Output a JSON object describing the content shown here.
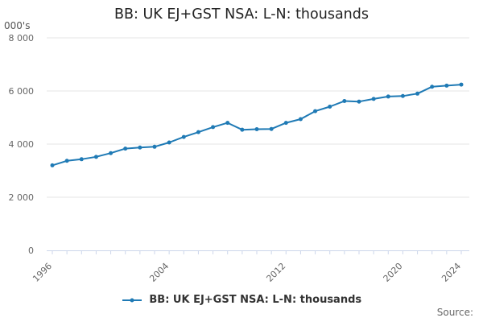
{
  "chart_data": {
    "type": "line",
    "title": "BB: UK EJ+GST NSA: L-N: thousands",
    "y_unit_label": "000's",
    "source_label": "Source:",
    "ylim": [
      0,
      8000
    ],
    "yticks": [
      0,
      2000,
      4000,
      6000,
      8000
    ],
    "ytick_labels": [
      "0",
      "2 000",
      "4 000",
      "6 000",
      "8 000"
    ],
    "xlim": [
      1996,
      2024
    ],
    "xticks": [
      1996,
      2004,
      2012,
      2020,
      2024
    ],
    "xtick_labels": [
      "1996",
      "2004",
      "2012",
      "2020",
      "2024"
    ],
    "grid": true,
    "legend_position": "bottom",
    "series": [
      {
        "name": "BB: UK EJ+GST NSA: L-N: thousands",
        "color": "#1f7ab5",
        "x": [
          1996,
          1997,
          1998,
          1999,
          2000,
          2001,
          2002,
          2003,
          2004,
          2005,
          2006,
          2007,
          2008,
          2009,
          2010,
          2011,
          2012,
          2013,
          2014,
          2015,
          2016,
          2017,
          2018,
          2019,
          2020,
          2021,
          2022,
          2023,
          2024
        ],
        "values": [
          3200,
          3370,
          3430,
          3520,
          3660,
          3830,
          3870,
          3900,
          4060,
          4270,
          4450,
          4640,
          4800,
          4540,
          4560,
          4570,
          4800,
          4940,
          5240,
          5410,
          5620,
          5600,
          5700,
          5790,
          5810,
          5900,
          6160,
          6200,
          6240
        ]
      }
    ]
  }
}
